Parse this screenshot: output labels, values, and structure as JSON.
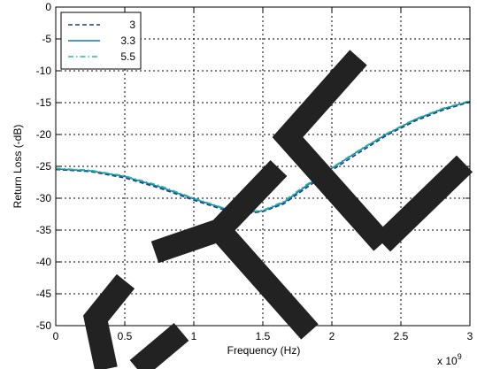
{
  "chart_data": {
    "type": "line",
    "title": "",
    "xlabel": "Frequency (Hz)",
    "ylabel": "Return Loss (-dB)",
    "x_exponent_label": "x 10",
    "x_exponent_power": "9",
    "xlim": [
      0,
      3
    ],
    "ylim": [
      -50,
      0
    ],
    "xticks": [
      0,
      0.5,
      1,
      1.5,
      2,
      2.5,
      3
    ],
    "xtick_labels": [
      "0",
      "0.5",
      "1",
      "1.5",
      "2",
      "2.5",
      "3"
    ],
    "yticks": [
      0,
      -5,
      -10,
      -15,
      -20,
      -25,
      -30,
      -35,
      -40,
      -45,
      -50
    ],
    "ytick_labels": [
      "0",
      "-5",
      "-10",
      "-15",
      "-20",
      "-25",
      "-30",
      "-35",
      "-40",
      "-45",
      "-50"
    ],
    "grid": true,
    "legend_position": "top-left",
    "series": [
      {
        "name": "3",
        "color": "#1f3b8a",
        "dash": "dashed",
        "x": [
          0,
          0.25,
          0.5,
          0.75,
          1.0,
          1.2,
          1.35,
          1.5,
          1.65,
          1.8,
          2.0,
          2.2,
          2.4,
          2.6,
          2.8,
          3.0
        ],
        "y": [
          -25.5,
          -25.8,
          -26.8,
          -28.4,
          -30.3,
          -31.7,
          -32.5,
          -32.1,
          -30.9,
          -28.6,
          -25.6,
          -22.8,
          -20.1,
          -17.9,
          -16.2,
          -14.9
        ]
      },
      {
        "name": "3.3",
        "color": "#0f7fb0",
        "dash": "solid",
        "x": [
          0,
          0.25,
          0.5,
          0.75,
          1.0,
          1.2,
          1.35,
          1.5,
          1.65,
          1.8,
          2.0,
          2.2,
          2.4,
          2.6,
          2.8,
          3.0
        ],
        "y": [
          -25.4,
          -25.7,
          -26.6,
          -28.2,
          -30.1,
          -31.5,
          -32.3,
          -32.0,
          -30.7,
          -28.3,
          -25.3,
          -22.5,
          -19.9,
          -17.7,
          -16.0,
          -14.8
        ]
      },
      {
        "name": "5.5",
        "color": "#2bbf8a",
        "dash": "dashdot",
        "x": [
          0,
          0.25,
          0.5,
          0.75,
          1.0,
          1.2,
          1.35,
          1.5,
          1.65,
          1.8,
          2.0,
          2.2,
          2.4,
          2.6,
          2.8,
          3.0
        ],
        "y": [
          -25.3,
          -25.6,
          -26.5,
          -28.0,
          -30.0,
          -31.4,
          -32.2,
          -31.9,
          -30.5,
          -28.1,
          -25.2,
          -22.4,
          -19.8,
          -17.6,
          -15.9,
          -14.7
        ]
      }
    ]
  }
}
